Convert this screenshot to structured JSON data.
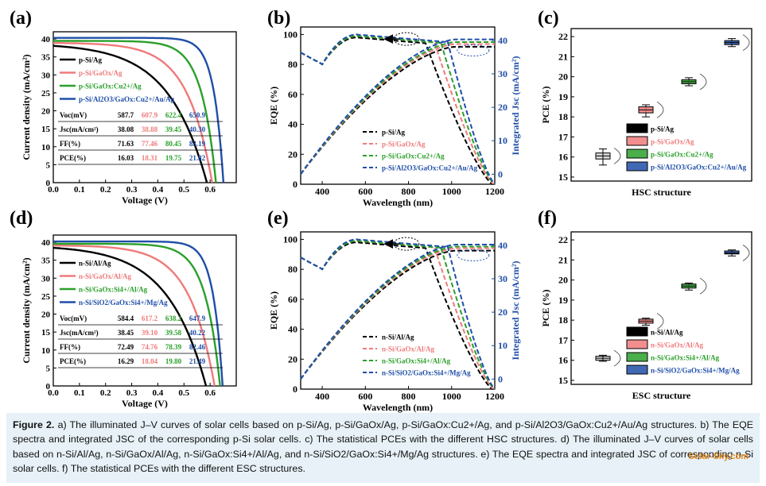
{
  "caption": {
    "label": "Figure 2.",
    "text": "a) The illuminated J–V curves of solar cells based on p-Si/Ag, p-Si/GaOx/Ag, p-Si/GaOx:Cu2+/Ag, and p-Si/Al2O3/GaOx:Cu2+/Au/Ag structures. b) The EQE spectra and integrated JSC of the corresponding p-Si solar cells. c) The statistical PCEs with the different HSC structures. d) The illuminated J–V curves of solar cells based on n-Si/Al/Ag, n-Si/GaOx/Al/Ag, n-Si/GaOx:Si4+/Al/Ag, and n-Si/SiO2/GaOx:Si4+/Mg/Ag structures. e) The EQE spectra and integrated JSC of corresponding n-Si solar cells. f) The statistical PCEs with the different ESC structures."
  },
  "watermark": "Solar-Sky.com",
  "colors": {
    "s1": "#000000",
    "s2": "#f07a7a",
    "s3": "#2aa02a",
    "s4": "#1f4ea8"
  },
  "chart_data": [
    {
      "panel": "(a)",
      "type": "line",
      "xlabel": "Voltage (V)",
      "ylabel": "Current density (mA/cm²)",
      "xlim": [
        0,
        0.7
      ],
      "ylim": [
        0,
        42
      ],
      "xticks": [
        "0.0",
        "0.1",
        "0.2",
        "0.3",
        "0.4",
        "0.5",
        "0.6"
      ],
      "yticks": [
        "0",
        "5",
        "10",
        "15",
        "20",
        "25",
        "30",
        "35",
        "40"
      ],
      "series": [
        {
          "name": "p-Si/Ag",
          "jsc": 38.08,
          "voc": 0.5877
        },
        {
          "name": "p-Si/GaOx/Ag",
          "jsc": 38.88,
          "voc": 0.6079
        },
        {
          "name": "p-Si/GaOx:Cu2+/Ag",
          "jsc": 39.45,
          "voc": 0.6224
        },
        {
          "name": "p-Si/Al2O3/GaOx:Cu2+/Au/Ag",
          "jsc": 40.3,
          "voc": 0.6509
        }
      ],
      "table": {
        "rows": [
          "Voc(mV)",
          "Jsc(mA/cm²)",
          "FF(%)",
          "PCE(%)"
        ],
        "values": [
          [
            "587.7",
            "607.9",
            "622.4",
            "650.9"
          ],
          [
            "38.08",
            "38.88",
            "39.45",
            "40.30"
          ],
          [
            "71.63",
            "77.46",
            "80.45",
            "83.19"
          ],
          [
            "16.03",
            "18.31",
            "19.75",
            "21.82"
          ]
        ]
      }
    },
    {
      "panel": "(b)",
      "type": "line",
      "xlabel": "Wavelength (nm)",
      "ylabel": "EQE (%)",
      "y2label": "Integrated Jsc (mA/cm²)",
      "xlim": [
        300,
        1200
      ],
      "ylim": [
        0,
        105
      ],
      "y2lim": [
        -3,
        44
      ],
      "xticks": [
        "400",
        "600",
        "800",
        "1000",
        "1200"
      ],
      "yticks": [
        "0",
        "20",
        "40",
        "60",
        "80",
        "100"
      ],
      "y2ticks": [
        "0",
        "10",
        "20",
        "30",
        "40"
      ],
      "series": [
        {
          "name": "p-Si/Ag",
          "eqe_peak": 98,
          "eqe_cut": [
            880,
            1190
          ],
          "jsc_final": 38.1
        },
        {
          "name": "p-Si/GaOx/Ag",
          "eqe_peak": 99,
          "eqe_cut": [
            920,
            1195
          ],
          "jsc_final": 38.9
        },
        {
          "name": "p-Si/GaOx:Cu2+/Ag",
          "eqe_peak": 99,
          "eqe_cut": [
            950,
            1198
          ],
          "jsc_final": 39.5
        },
        {
          "name": "p-Si/Al2O3/GaOx:Cu2+/Au/Ag",
          "eqe_peak": 100,
          "eqe_cut": [
            980,
            1200
          ],
          "jsc_final": 40.3
        }
      ]
    },
    {
      "panel": "(c)",
      "type": "box",
      "xlabel": "HSC structure",
      "ylabel": "PCE (%)",
      "ylim": [
        14.8,
        22.4
      ],
      "yticks": [
        "15",
        "16",
        "17",
        "18",
        "19",
        "20",
        "21",
        "22"
      ],
      "series": [
        {
          "name": "p-Si/Ag",
          "median": 16.05,
          "q1": 15.9,
          "q3": 16.2,
          "min": 15.6,
          "max": 16.4
        },
        {
          "name": "p-Si/GaOx/Ag",
          "median": 18.35,
          "q1": 18.2,
          "q3": 18.5,
          "min": 18.0,
          "max": 18.6
        },
        {
          "name": "p-Si/GaOx:Cu2+/Ag",
          "median": 19.75,
          "q1": 19.65,
          "q3": 19.85,
          "min": 19.55,
          "max": 19.95
        },
        {
          "name": "p-Si/Al2O3/GaOx:Cu2+/Au/Ag",
          "median": 21.7,
          "q1": 21.6,
          "q3": 21.8,
          "min": 21.5,
          "max": 21.9
        }
      ]
    },
    {
      "panel": "(d)",
      "type": "line",
      "xlabel": "Voltage (V)",
      "ylabel": "Current density (mA/cm²)",
      "xlim": [
        0,
        0.7
      ],
      "ylim": [
        0,
        42
      ],
      "xticks": [
        "0.0",
        "0.1",
        "0.2",
        "0.3",
        "0.4",
        "0.5",
        "0.6"
      ],
      "yticks": [
        "0",
        "5",
        "10",
        "15",
        "20",
        "25",
        "30",
        "35",
        "40"
      ],
      "series": [
        {
          "name": "n-Si/Al/Ag",
          "jsc": 38.45,
          "voc": 0.5844
        },
        {
          "name": "n-Si/GaOx/Al/Ag",
          "jsc": 39.1,
          "voc": 0.6172
        },
        {
          "name": "n-Si/GaOx:Si4+/Al/Ag",
          "jsc": 39.58,
          "voc": 0.6382
        },
        {
          "name": "n-Si/SiO2/GaOx:Si4+/Mg/Ag",
          "jsc": 40.22,
          "voc": 0.6479
        }
      ],
      "table": {
        "rows": [
          "Voc(mV)",
          "Jsc(mA/cm²)",
          "FF(%)",
          "PCE(%)"
        ],
        "values": [
          [
            "584.4",
            "617.2",
            "638.2",
            "647.9"
          ],
          [
            "38.45",
            "39.10",
            "39.58",
            "40.22"
          ],
          [
            "72.49",
            "74.76",
            "78.39",
            "82.46"
          ],
          [
            "16.29",
            "18.04",
            "19.80",
            "21.49"
          ]
        ]
      }
    },
    {
      "panel": "(e)",
      "type": "line",
      "xlabel": "Wavelength (nm)",
      "ylabel": "EQE (%)",
      "y2label": "Integrated Jsc (mA/cm²)",
      "xlim": [
        300,
        1200
      ],
      "ylim": [
        0,
        105
      ],
      "y2lim": [
        -3,
        44
      ],
      "xticks": [
        "400",
        "600",
        "800",
        "1000",
        "1200"
      ],
      "yticks": [
        "0",
        "20",
        "40",
        "60",
        "80",
        "100"
      ],
      "y2ticks": [
        "0",
        "10",
        "20",
        "30",
        "40"
      ],
      "series": [
        {
          "name": "n-Si/Al/Ag",
          "eqe_peak": 98,
          "eqe_cut": [
            880,
            1190
          ],
          "jsc_final": 38.4
        },
        {
          "name": "n-Si/GaOx/Al/Ag",
          "eqe_peak": 99,
          "eqe_cut": [
            920,
            1195
          ],
          "jsc_final": 39.1
        },
        {
          "name": "n-Si/GaOx:Si4+/Al/Ag",
          "eqe_peak": 99,
          "eqe_cut": [
            950,
            1198
          ],
          "jsc_final": 39.6
        },
        {
          "name": "n-Si/SiO2/GaOx:Si4+/Mg/Ag",
          "eqe_peak": 100,
          "eqe_cut": [
            980,
            1200
          ],
          "jsc_final": 40.2
        }
      ]
    },
    {
      "panel": "(f)",
      "type": "box",
      "xlabel": "ESC structure",
      "ylabel": "PCE (%)",
      "ylim": [
        14.8,
        22.4
      ],
      "yticks": [
        "15",
        "16",
        "17",
        "18",
        "19",
        "20",
        "21",
        "22"
      ],
      "series": [
        {
          "name": "n-Si/Al/Ag",
          "median": 16.1,
          "q1": 16.0,
          "q3": 16.2,
          "min": 15.95,
          "max": 16.25
        },
        {
          "name": "n-Si/GaOx/Al/Ag",
          "median": 17.95,
          "q1": 17.85,
          "q3": 18.05,
          "min": 17.75,
          "max": 18.1
        },
        {
          "name": "n-Si/GaOx:Si4+/Al/Ag",
          "median": 19.7,
          "q1": 19.6,
          "q3": 19.8,
          "min": 19.5,
          "max": 19.85
        },
        {
          "name": "n-Si/SiO2/GaOx:Si4+/Mg/Ag",
          "median": 21.35,
          "q1": 21.3,
          "q3": 21.45,
          "min": 21.2,
          "max": 21.5
        }
      ]
    }
  ]
}
